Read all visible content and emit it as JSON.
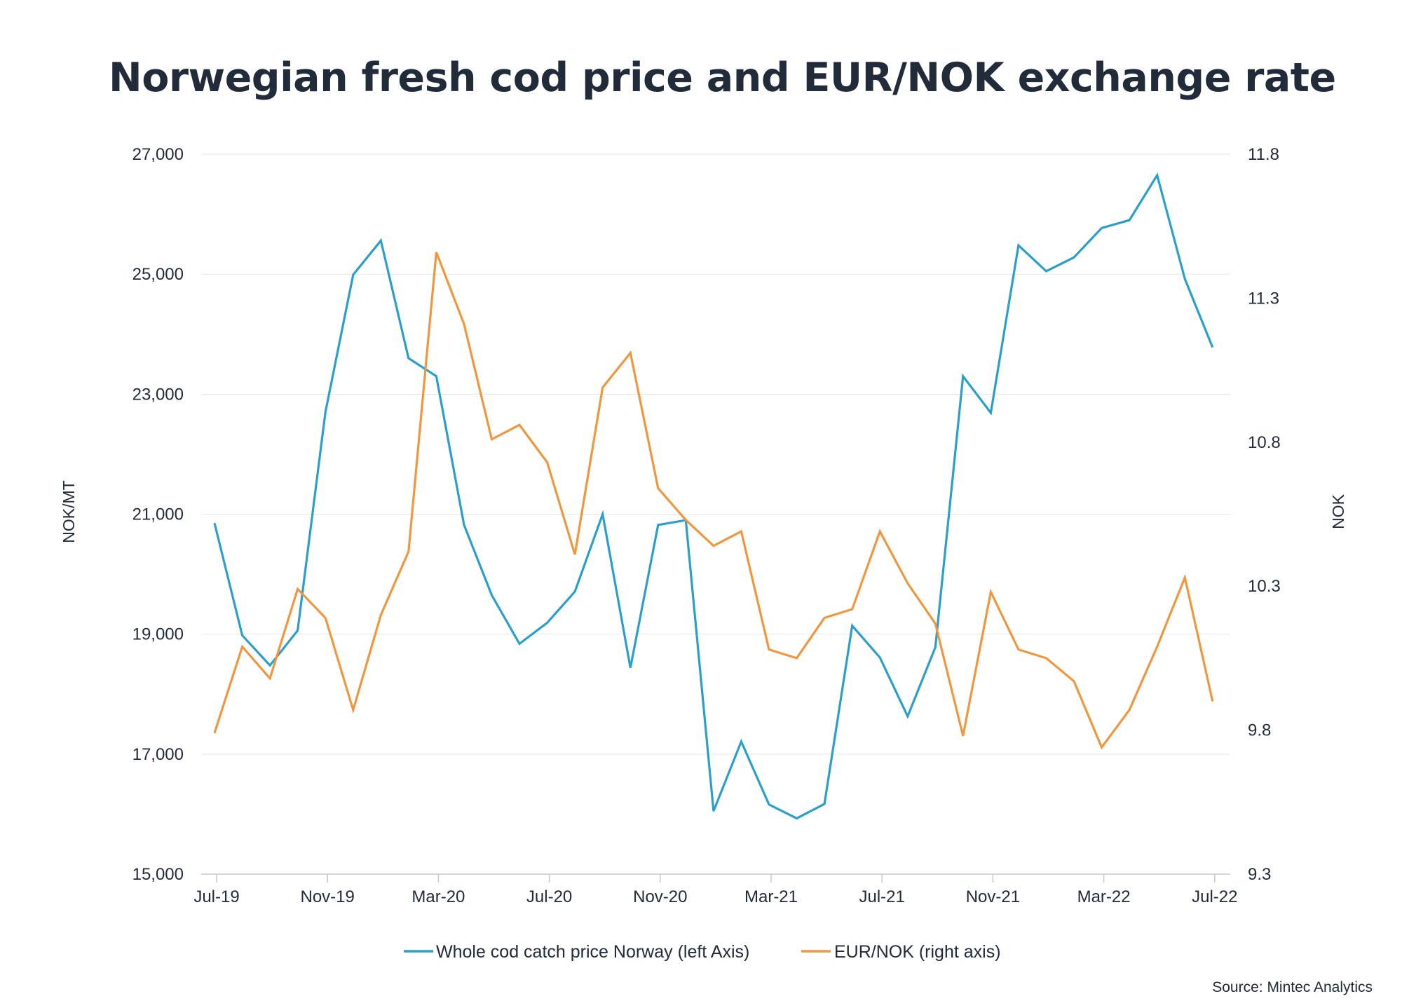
{
  "chart_data": {
    "type": "line",
    "title": "Norwegian fresh cod price and EUR/NOK exchange rate",
    "source": "Source: Mintec Analytics",
    "x": [
      "2019-07",
      "2019-08",
      "2019-09",
      "2019-10",
      "2019-11",
      "2019-12",
      "2020-01",
      "2020-02",
      "2020-03",
      "2020-04",
      "2020-05",
      "2020-06",
      "2020-07",
      "2020-08",
      "2020-09",
      "2020-10",
      "2020-11",
      "2020-12",
      "2021-01",
      "2021-02",
      "2021-03",
      "2021-04",
      "2021-05",
      "2021-06",
      "2021-07",
      "2021-08",
      "2021-09",
      "2021-10",
      "2021-11",
      "2021-12",
      "2022-01",
      "2022-02",
      "2022-03",
      "2022-04",
      "2022-05",
      "2022-06",
      "2022-07"
    ],
    "x_tick_labels": [
      "Jul-19",
      "Nov-19",
      "Mar-20",
      "Jul-20",
      "Nov-20",
      "Mar-21",
      "Jul-21",
      "Nov-21",
      "Mar-22",
      "Jul-22"
    ],
    "y_left": {
      "label": "NOK/MT",
      "range": [
        15000,
        27000
      ],
      "ticks": [
        "15,000",
        "17,000",
        "19,000",
        "21,000",
        "23,000",
        "25,000",
        "27,000"
      ]
    },
    "y_right": {
      "label": "NOK",
      "range": [
        9.3,
        11.8
      ],
      "ticks": [
        "9.3",
        "9.8",
        "10.3",
        "10.8",
        "11.3",
        "11.8"
      ]
    },
    "grid": "horizontal",
    "legend_position": "bottom",
    "series": [
      {
        "name": "Whole cod catch price Norway (left Axis)",
        "axis": "left",
        "color": "#2a9fcb",
        "values": [
          20850,
          18980,
          18480,
          19060,
          22700,
          24990,
          25560,
          23600,
          23300,
          20820,
          19650,
          18840,
          19190,
          19710,
          21000,
          18440,
          20820,
          20900,
          16050,
          17210,
          16160,
          15930,
          16170,
          19140,
          18610,
          17630,
          18780,
          23300,
          22690,
          25480,
          25050,
          25280,
          25770,
          25900,
          26650,
          24920,
          23780
        ]
      },
      {
        "name": "EUR/NOK (right axis)",
        "axis": "right",
        "color": "#f0973d",
        "values": [
          9.79,
          10.09,
          9.98,
          10.29,
          10.19,
          9.87,
          10.2,
          10.42,
          11.46,
          11.21,
          10.81,
          10.86,
          10.73,
          10.41,
          10.99,
          11.11,
          10.64,
          10.53,
          10.44,
          10.49,
          10.08,
          10.05,
          10.19,
          10.22,
          10.49,
          10.31,
          10.17,
          9.78,
          10.28,
          10.08,
          10.05,
          9.97,
          9.74,
          9.87,
          10.09,
          10.33,
          9.9
        ]
      }
    ]
  }
}
